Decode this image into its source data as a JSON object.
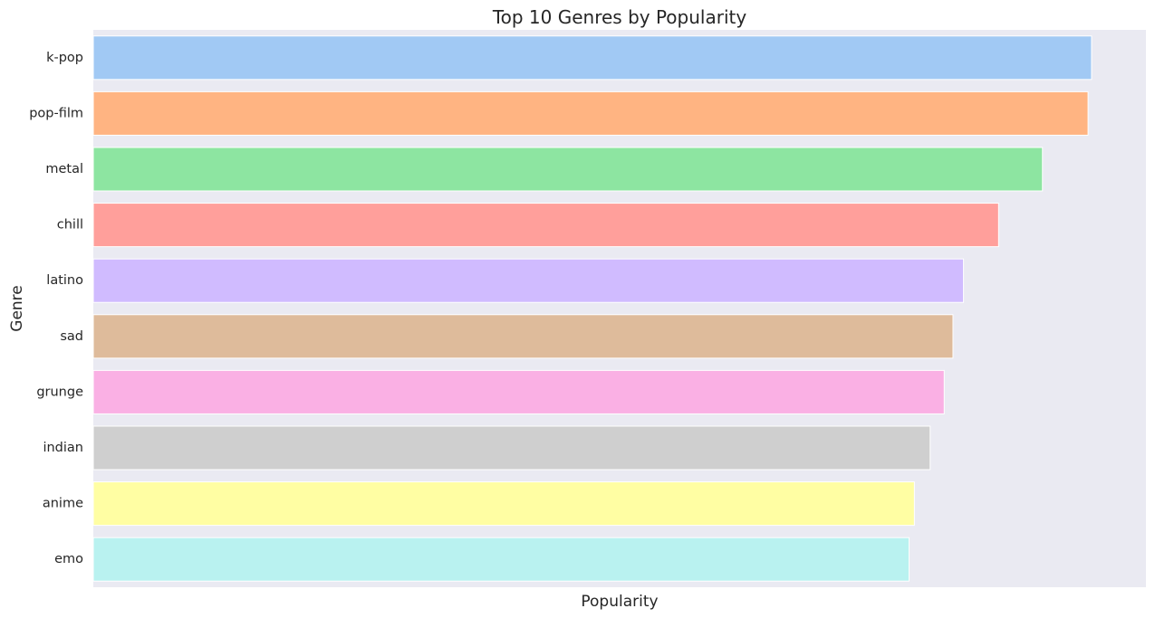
{
  "chart_data": {
    "type": "bar",
    "orientation": "horizontal",
    "title": "Top 10 Genres by Popularity",
    "xlabel": "Popularity",
    "ylabel": "Genre",
    "categories": [
      "k-pop",
      "pop-film",
      "metal",
      "chill",
      "latino",
      "sad",
      "grunge",
      "indian",
      "anime",
      "emo"
    ],
    "values": [
      56.9,
      56.7,
      54.1,
      51.6,
      49.6,
      49.0,
      48.5,
      47.7,
      46.8,
      46.5
    ],
    "xlim": [
      0,
      60
    ],
    "x_ticks_shown": false,
    "grid": true,
    "legend": "none",
    "colors": [
      "#a1c9f4",
      "#ffb482",
      "#8de5a1",
      "#ff9f9b",
      "#d0bbff",
      "#debb9b",
      "#fab0e4",
      "#cfcfcf",
      "#fffea3",
      "#b9f2f0"
    ],
    "background_color": "#eaeaf2"
  }
}
